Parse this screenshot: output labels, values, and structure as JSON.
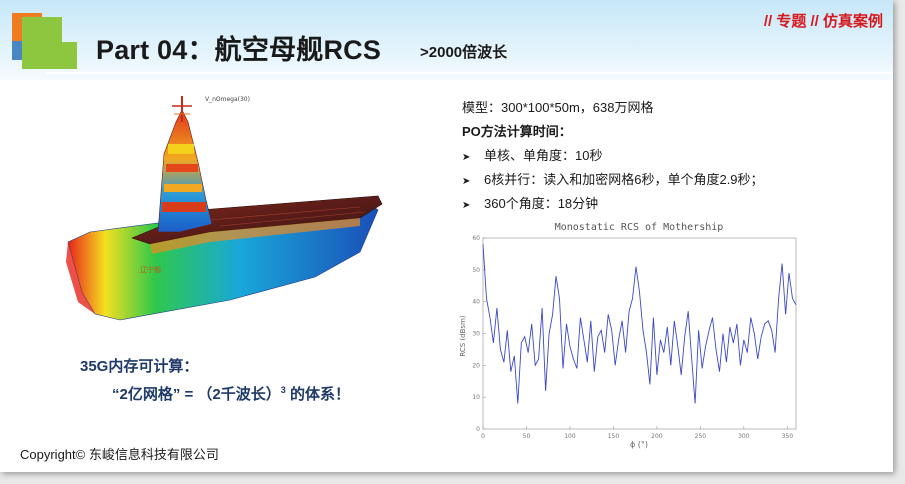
{
  "header": {
    "title": "Part 04：航空母舰RCS",
    "subtitle": ">2000倍波长",
    "tag": "// 专题 // 仿真案例"
  },
  "colors": {
    "accent_red": "#d6191c",
    "note_blue": "#1f3a68",
    "plot_blue": "#3a48c8"
  },
  "ship": {
    "caption": "V_nOmega(30)"
  },
  "notes": {
    "line1": "35G内存可计算：",
    "line2_prefix": "“2亿网格”  =  （2千波长）",
    "line2_sup": "3",
    "line2_suffix": " 的体系！"
  },
  "info": {
    "model": "模型：300*100*50m，638万网格",
    "po_title": "PO方法计算时间：",
    "bullets": [
      "单核、单角度：10秒",
      "6核并行：读入和加密网格6秒，单个角度2.9秒；",
      "360个角度：18分钟"
    ]
  },
  "footer": {
    "copyright": "Copyright© 东峻信息科技有限公司"
  },
  "chart_data": {
    "type": "line",
    "title": "Monostatic RCS of Mothership",
    "xlabel": "ϕ (°)",
    "ylabel": "RCS (dBsm)",
    "xlim": [
      0,
      360
    ],
    "ylim": [
      0,
      60
    ],
    "xticks": [
      0,
      50,
      100,
      150,
      200,
      250,
      300,
      350
    ],
    "yticks": [
      0,
      10,
      20,
      30,
      40,
      50,
      60
    ],
    "grid": false,
    "series": [
      {
        "x": [
          0,
          4,
          8,
          12,
          16,
          20,
          24,
          28,
          32,
          36,
          40,
          44,
          48,
          52,
          56,
          60,
          64,
          68,
          72,
          76,
          80,
          84,
          88,
          92,
          96,
          100,
          104,
          108,
          112,
          116,
          120,
          124,
          128,
          132,
          136,
          140,
          144,
          148,
          152,
          156,
          160,
          164,
          168,
          172,
          176,
          180,
          184,
          188,
          192,
          196,
          200,
          204,
          208,
          212,
          216,
          220,
          224,
          228,
          232,
          236,
          240,
          244,
          248,
          252,
          256,
          260,
          264,
          268,
          272,
          276,
          280,
          284,
          288,
          292,
          296,
          300,
          304,
          308,
          312,
          316,
          320,
          324,
          328,
          332,
          336,
          340,
          344,
          348,
          352,
          356,
          360
        ],
        "y": [
          58,
          41,
          35,
          27,
          38,
          25,
          21,
          31,
          18,
          23,
          8,
          27,
          29,
          24,
          33,
          20,
          22,
          38,
          12,
          30,
          36,
          48,
          41,
          19,
          33,
          26,
          22,
          19,
          35,
          28,
          21,
          34,
          18,
          29,
          31,
          24,
          36,
          31,
          20,
          28,
          34,
          24,
          37,
          41,
          51,
          43,
          31,
          24,
          14,
          35,
          17,
          28,
          24,
          32,
          20,
          34,
          26,
          17,
          29,
          37,
          22,
          8,
          31,
          19,
          26,
          31,
          35,
          25,
          18,
          30,
          21,
          32,
          27,
          33,
          20,
          28,
          24,
          35,
          30,
          22,
          29,
          33,
          34,
          31,
          24,
          41,
          52,
          36,
          49,
          41,
          39
        ]
      }
    ]
  }
}
